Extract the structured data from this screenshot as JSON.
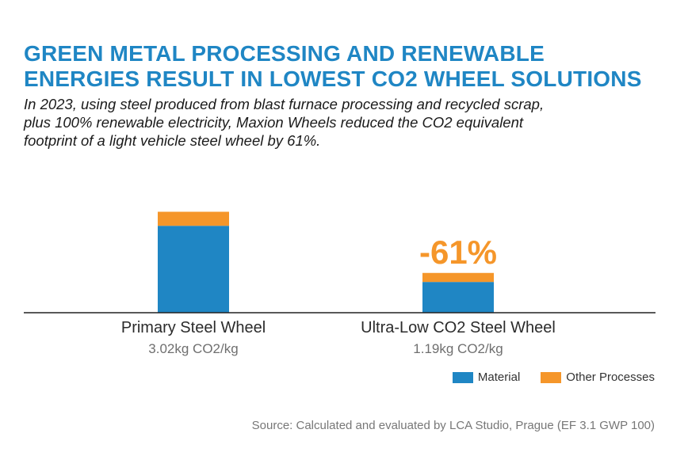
{
  "title": {
    "line1": "GREEN METAL PROCESSING AND RENEWABLE",
    "line2": "ENERGIES RESULT IN LOWEST CO2 WHEEL SOLUTIONS"
  },
  "subtitle": {
    "line1": "In 2023, using steel produced from blast furnace processing and recycled scrap,",
    "line2": "plus 100% renewable electricity, Maxion Wheels reduced the CO2 equivalent",
    "line3": "footprint of a light vehicle steel wheel by 61%."
  },
  "source": "Source: Calculated and evaluated by LCA Studio, Prague (EF 3.1 GWP 100)",
  "colors": {
    "title": "#1f86c4",
    "material": "#1f86c4",
    "other": "#f5962a",
    "annotation": "#f5962a",
    "axis": "#222222"
  },
  "chart_data": {
    "type": "bar",
    "stacked": true,
    "categories": [
      "Primary Steel Wheel",
      "Ultra-Low CO2 Steel Wheel"
    ],
    "category_values": [
      "3.02kg CO2/kg",
      "1.19kg CO2/kg"
    ],
    "totals": [
      3.02,
      1.19
    ],
    "series": [
      {
        "name": "Material",
        "values": [
          2.6,
          0.92
        ]
      },
      {
        "name": "Other Processes",
        "values": [
          0.42,
          0.27
        ]
      }
    ],
    "ylim": [
      0,
      3.6
    ],
    "annotation": "-61%",
    "legend_position": "bottom-right",
    "grid": false
  }
}
